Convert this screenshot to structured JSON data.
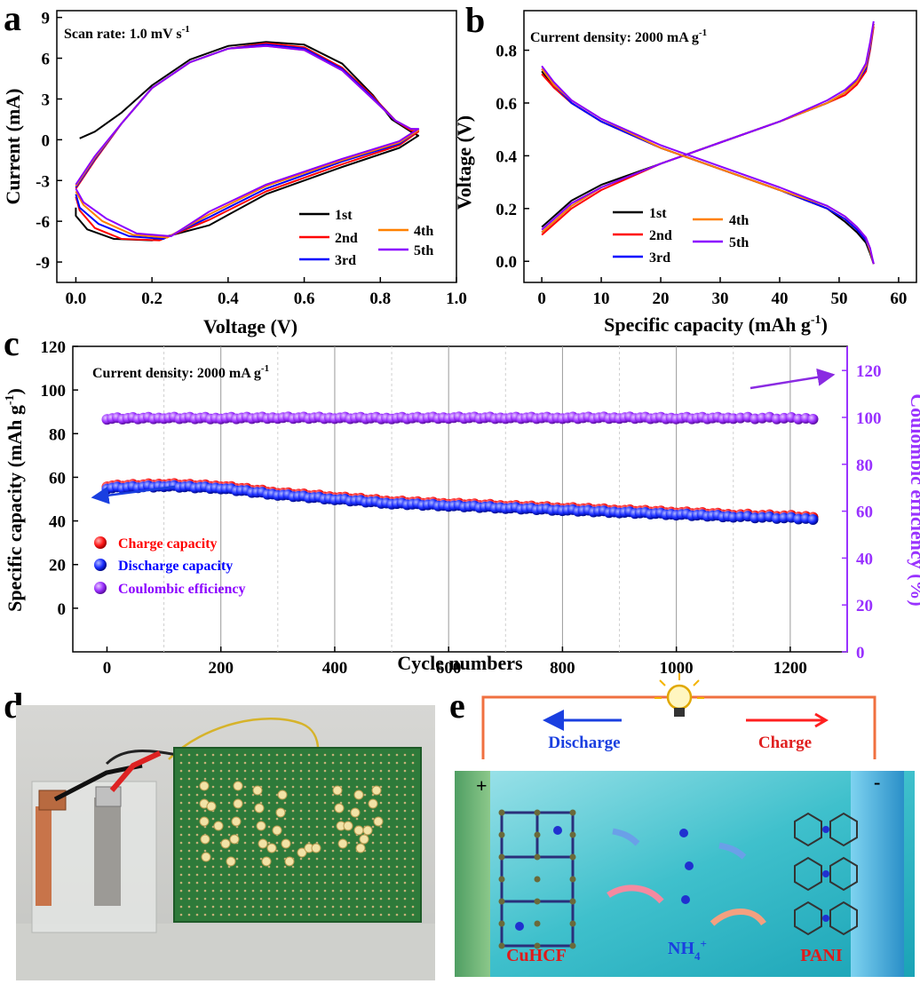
{
  "panel_labels": {
    "a": "a",
    "b": "b",
    "c": "c",
    "d": "d",
    "e": "e"
  },
  "chart_data": [
    {
      "id": "a",
      "type": "line",
      "annotation": "Scan rate: 1.0 mV s",
      "annotation_sup": "-1",
      "xlabel": "Voltage (V)",
      "ylabel": "Current (mA)",
      "xlim": [
        -0.05,
        1.0
      ],
      "ylim": [
        -10.5,
        9.5
      ],
      "xticks": [
        "0.0",
        "0.2",
        "0.4",
        "0.6",
        "0.8",
        "1.0"
      ],
      "xtick_values": [
        0.0,
        0.2,
        0.4,
        0.6,
        0.8,
        1.0
      ],
      "yticks": [
        "9",
        "6",
        "3",
        "0",
        "-3",
        "-6",
        "-9"
      ],
      "ytick_values": [
        9,
        6,
        3,
        0,
        -3,
        -6,
        -9
      ],
      "legend": [
        "1st",
        "2nd",
        "3rd",
        "4th",
        "5th"
      ],
      "series": [
        {
          "name": "1st",
          "color": "#000000",
          "x": [
            0.01,
            0.05,
            0.12,
            0.2,
            0.3,
            0.4,
            0.5,
            0.6,
            0.7,
            0.78,
            0.83,
            0.88,
            0.9,
            0.85,
            0.7,
            0.5,
            0.35,
            0.2,
            0.1,
            0.03,
            0.0,
            0.0
          ],
          "y": [
            0.1,
            0.6,
            2.0,
            4.0,
            5.9,
            6.9,
            7.2,
            7.0,
            5.6,
            3.3,
            1.5,
            0.6,
            0.3,
            -0.6,
            -2.0,
            -4.0,
            -6.3,
            -7.4,
            -7.3,
            -6.6,
            -5.6,
            -5.0
          ]
        },
        {
          "name": "2nd",
          "color": "#ff0000",
          "x": [
            0.0,
            0.05,
            0.12,
            0.2,
            0.3,
            0.4,
            0.5,
            0.6,
            0.7,
            0.78,
            0.84,
            0.88,
            0.9,
            0.85,
            0.7,
            0.5,
            0.35,
            0.22,
            0.12,
            0.05,
            0.01,
            0.0
          ],
          "y": [
            -3.6,
            -1.5,
            1.2,
            3.8,
            5.7,
            6.7,
            7.1,
            6.8,
            5.3,
            3.2,
            1.4,
            0.7,
            0.6,
            -0.4,
            -1.8,
            -3.8,
            -5.9,
            -7.4,
            -7.3,
            -6.5,
            -5.2,
            -4.2
          ]
        },
        {
          "name": "3rd",
          "color": "#0000ff",
          "x": [
            0.0,
            0.05,
            0.12,
            0.2,
            0.3,
            0.4,
            0.5,
            0.6,
            0.7,
            0.78,
            0.84,
            0.88,
            0.9,
            0.85,
            0.7,
            0.5,
            0.35,
            0.23,
            0.14,
            0.06,
            0.01,
            0.0
          ],
          "y": [
            -3.5,
            -1.4,
            1.2,
            3.8,
            5.7,
            6.7,
            7.0,
            6.7,
            5.2,
            3.1,
            1.4,
            0.8,
            0.7,
            -0.3,
            -1.6,
            -3.6,
            -5.7,
            -7.3,
            -7.1,
            -6.2,
            -5.0,
            -4.0
          ]
        },
        {
          "name": "4th",
          "color": "#ff8000",
          "x": [
            0.0,
            0.05,
            0.12,
            0.2,
            0.3,
            0.4,
            0.5,
            0.6,
            0.7,
            0.78,
            0.84,
            0.88,
            0.9,
            0.85,
            0.7,
            0.5,
            0.35,
            0.24,
            0.15,
            0.07,
            0.02,
            0.0
          ],
          "y": [
            -3.4,
            -1.3,
            1.2,
            3.8,
            5.7,
            6.7,
            6.9,
            6.6,
            5.1,
            3.0,
            1.4,
            0.8,
            0.7,
            -0.2,
            -1.5,
            -3.4,
            -5.5,
            -7.2,
            -7.0,
            -6.0,
            -4.8,
            -3.8
          ]
        },
        {
          "name": "5th",
          "color": "#8b00ff",
          "x": [
            0.0,
            0.05,
            0.12,
            0.2,
            0.3,
            0.4,
            0.5,
            0.6,
            0.7,
            0.78,
            0.84,
            0.88,
            0.9,
            0.85,
            0.7,
            0.5,
            0.35,
            0.25,
            0.16,
            0.08,
            0.02,
            0.0
          ],
          "y": [
            -3.3,
            -1.2,
            1.2,
            3.8,
            5.7,
            6.7,
            6.9,
            6.6,
            5.1,
            3.0,
            1.4,
            0.8,
            0.8,
            -0.1,
            -1.4,
            -3.3,
            -5.3,
            -7.1,
            -6.9,
            -5.8,
            -4.6,
            -3.6
          ]
        }
      ]
    },
    {
      "id": "b",
      "type": "line",
      "annotation": "Current density: 2000 mA g",
      "annotation_sup": "-1",
      "xlabel": "Specific capacity (mAh g",
      "xlabel_sup": "-1",
      "xlabel_end": ")",
      "ylabel": "Voltage (V)",
      "xlim": [
        -3,
        63
      ],
      "ylim": [
        -0.08,
        0.95
      ],
      "xticks": [
        "0",
        "10",
        "20",
        "30",
        "40",
        "50",
        "60"
      ],
      "xtick_values": [
        0,
        10,
        20,
        30,
        40,
        50,
        60
      ],
      "yticks": [
        "0.8",
        "0.6",
        "0.4",
        "0.2",
        "0.0"
      ],
      "ytick_values": [
        0.8,
        0.6,
        0.4,
        0.2,
        0.0
      ],
      "legend": [
        "1st",
        "2nd",
        "3rd",
        "4th",
        "5th"
      ],
      "series": [
        {
          "name": "1st",
          "color": "#000000",
          "x": [
            0,
            2,
            5,
            10,
            20,
            30,
            40,
            48,
            51,
            53,
            54.5,
            55.2,
            55.8
          ],
          "y": [
            0.13,
            0.17,
            0.23,
            0.29,
            0.37,
            0.45,
            0.53,
            0.6,
            0.64,
            0.69,
            0.74,
            0.82,
            0.9
          ]
        },
        {
          "name": "2nd",
          "color": "#ff0000",
          "x": [
            0,
            2,
            5,
            10,
            20,
            30,
            40,
            48,
            51,
            53,
            54.5,
            55.2,
            55.8
          ],
          "y": [
            0.1,
            0.14,
            0.2,
            0.27,
            0.37,
            0.45,
            0.53,
            0.6,
            0.63,
            0.67,
            0.72,
            0.8,
            0.89
          ]
        },
        {
          "name": "3rd",
          "color": "#0000ff",
          "x": [
            0,
            2,
            5,
            10,
            20,
            30,
            40,
            48,
            51,
            53,
            54.5,
            55.2,
            55.8
          ],
          "y": [
            0.11,
            0.15,
            0.21,
            0.28,
            0.37,
            0.45,
            0.53,
            0.6,
            0.64,
            0.68,
            0.73,
            0.81,
            0.9
          ]
        },
        {
          "name": "4th",
          "color": "#ff8000",
          "x": [
            0,
            2,
            5,
            10,
            20,
            30,
            40,
            48,
            51,
            53,
            54.5,
            55.2,
            55.8
          ],
          "y": [
            0.11,
            0.15,
            0.21,
            0.28,
            0.37,
            0.45,
            0.53,
            0.6,
            0.64,
            0.68,
            0.74,
            0.82,
            0.9
          ]
        },
        {
          "name": "5th",
          "color": "#8b00ff",
          "x": [
            0,
            2,
            5,
            10,
            20,
            30,
            40,
            48,
            51,
            53,
            54.5,
            55.2,
            55.8
          ],
          "y": [
            0.12,
            0.16,
            0.22,
            0.28,
            0.37,
            0.45,
            0.53,
            0.61,
            0.65,
            0.69,
            0.75,
            0.83,
            0.91
          ]
        },
        {
          "name": "1st-discharge",
          "color": "#000000",
          "x": [
            0,
            2,
            5,
            10,
            20,
            30,
            40,
            48,
            51,
            53,
            54.5,
            55.2,
            55.8
          ],
          "y": [
            0.72,
            0.66,
            0.6,
            0.53,
            0.43,
            0.35,
            0.27,
            0.2,
            0.15,
            0.11,
            0.07,
            0.03,
            -0.01
          ]
        },
        {
          "name": "2nd-discharge",
          "color": "#ff0000",
          "x": [
            0,
            2,
            5,
            10,
            20,
            30,
            40,
            48,
            51,
            53,
            54.5,
            55.2,
            55.8
          ],
          "y": [
            0.71,
            0.66,
            0.6,
            0.53,
            0.43,
            0.35,
            0.27,
            0.2,
            0.16,
            0.12,
            0.08,
            0.04,
            -0.01
          ]
        },
        {
          "name": "3rd-discharge",
          "color": "#0000ff",
          "x": [
            0,
            2,
            5,
            10,
            20,
            30,
            40,
            48,
            51,
            53,
            54.5,
            55.2,
            55.8
          ],
          "y": [
            0.73,
            0.67,
            0.6,
            0.53,
            0.43,
            0.35,
            0.27,
            0.2,
            0.16,
            0.12,
            0.08,
            0.04,
            -0.01
          ]
        },
        {
          "name": "4th-discharge",
          "color": "#ff8000",
          "x": [
            0,
            2,
            5,
            10,
            20,
            30,
            40,
            48,
            51,
            53,
            54.5,
            55.2,
            55.8
          ],
          "y": [
            0.73,
            0.67,
            0.61,
            0.54,
            0.43,
            0.35,
            0.27,
            0.21,
            0.17,
            0.13,
            0.09,
            0.04,
            -0.01
          ]
        },
        {
          "name": "5th-discharge",
          "color": "#8b00ff",
          "x": [
            0,
            2,
            5,
            10,
            20,
            30,
            40,
            48,
            51,
            53,
            54.5,
            55.2,
            55.8
          ],
          "y": [
            0.74,
            0.68,
            0.61,
            0.54,
            0.44,
            0.36,
            0.28,
            0.21,
            0.17,
            0.13,
            0.09,
            0.05,
            -0.01
          ]
        }
      ]
    },
    {
      "id": "c",
      "type": "scatter",
      "annotation": "Current density: 2000 mA g",
      "annotation_sup": "-1",
      "xlabel": "Cycle numbers",
      "ylabel": "Specific capacity (mAh g",
      "ylabel_sup": "-1",
      "ylabel_end": ")",
      "y2label": "Coulombic efficiency (%)",
      "xlim": [
        -60,
        1300
      ],
      "ylim": [
        -20,
        120
      ],
      "y2lim": [
        0,
        130.3
      ],
      "xticks": [
        "0",
        "200",
        "400",
        "600",
        "800",
        "1000",
        "1200"
      ],
      "xtick_values": [
        0,
        200,
        400,
        600,
        800,
        1000,
        1200
      ],
      "yticks": [
        "120",
        "100",
        "80",
        "60",
        "40",
        "20",
        "0"
      ],
      "ytick_values": [
        120,
        100,
        80,
        60,
        40,
        20,
        0
      ],
      "y2ticks": [
        "120",
        "100",
        "80",
        "60",
        "40",
        "20",
        "0"
      ],
      "y2tick_values": [
        120,
        100,
        80,
        60,
        40,
        20,
        0
      ],
      "legend": [
        "Charge capacity",
        "Discharge capacity",
        "Coulombic efficiency"
      ],
      "series": [
        {
          "name": "Charge capacity",
          "color": "#ff0000",
          "x": [
            0,
            100,
            200,
            300,
            400,
            500,
            600,
            700,
            800,
            900,
            1000,
            1100,
            1240
          ],
          "y": [
            56,
            57,
            56,
            53,
            51,
            49,
            48,
            47,
            46,
            45,
            44,
            43,
            42
          ]
        },
        {
          "name": "Discharge capacity",
          "color": "#0000ff",
          "x": [
            0,
            100,
            200,
            300,
            400,
            500,
            600,
            700,
            800,
            900,
            1000,
            1100,
            1240
          ],
          "y": [
            55,
            56,
            55,
            52,
            50,
            48,
            47,
            46,
            45,
            44,
            43,
            42,
            41
          ]
        },
        {
          "name": "Coulombic efficiency",
          "color": "#9932ff",
          "x": [
            0,
            100,
            200,
            300,
            400,
            500,
            600,
            700,
            800,
            900,
            1000,
            1100,
            1240
          ],
          "y": [
            99.5,
            99.8,
            99.7,
            99.9,
            99.8,
            99.7,
            99.9,
            99.8,
            99.8,
            99.9,
            99.7,
            99.8,
            99.6
          ]
        }
      ]
    }
  ],
  "panel_d": {
    "led_text": "NH"
  },
  "panel_e": {
    "discharge_label": "Discharge",
    "charge_label": "Charge",
    "plus": "+",
    "minus": "-",
    "cathode": "CuHCF",
    "anode": "PANI",
    "ion": "NH",
    "ion_sub": "4",
    "ion_sup": "+"
  },
  "colors": {
    "a_c_arrow_blue": "#1a3fe0",
    "c_arrow_purple": "#8a2be2",
    "wire": "#f07040"
  }
}
